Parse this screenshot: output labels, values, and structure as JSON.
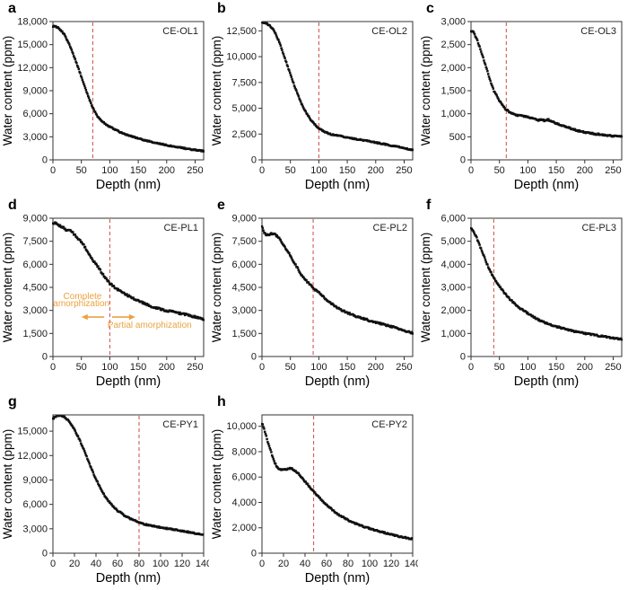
{
  "figure": {
    "background": "#ffffff",
    "point_color": "#111111",
    "frame_color": "#333333",
    "text_color": "#1a1a1a",
    "red_line_color": "#cf4a44",
    "annotation_color": "#eba23f"
  },
  "chart_data": [
    {
      "type": "scatter",
      "letter": "a",
      "title": "CE-OL1",
      "xlabel": "Depth (nm)",
      "ylabel": "Water content (ppm)",
      "xlim": [
        0,
        265
      ],
      "ylim": [
        0,
        18000
      ],
      "xticks": [
        0,
        50,
        100,
        150,
        200,
        250
      ],
      "yticks": [
        0,
        3000,
        6000,
        9000,
        12000,
        15000,
        18000
      ],
      "red_line_x": 70,
      "noise": 70,
      "curve": {
        "x": [
          0,
          5,
          10,
          15,
          20,
          25,
          30,
          35,
          40,
          45,
          50,
          55,
          60,
          65,
          70,
          75,
          80,
          90,
          100,
          110,
          120,
          130,
          140,
          150,
          160,
          170,
          180,
          190,
          200,
          210,
          220,
          230,
          240,
          250,
          260,
          265
        ],
        "y": [
          17400,
          17350,
          17150,
          16800,
          16300,
          15600,
          14800,
          13900,
          12900,
          11850,
          10800,
          9750,
          8700,
          7700,
          6800,
          6100,
          5500,
          4800,
          4300,
          3900,
          3550,
          3250,
          3000,
          2780,
          2580,
          2400,
          2230,
          2070,
          1920,
          1780,
          1650,
          1520,
          1400,
          1290,
          1190,
          1150
        ]
      }
    },
    {
      "type": "scatter",
      "letter": "b",
      "title": "CE-OL2",
      "xlabel": "Depth (nm)",
      "ylabel": "Water content (ppm)",
      "xlim": [
        0,
        265
      ],
      "ylim": [
        0,
        13400
      ],
      "xticks": [
        0,
        50,
        100,
        150,
        200,
        250
      ],
      "yticks": [
        0,
        2500,
        5000,
        7500,
        10000,
        12500
      ],
      "red_line_x": 100,
      "noise": 55,
      "curve": {
        "x": [
          0,
          5,
          10,
          15,
          20,
          25,
          30,
          35,
          40,
          45,
          50,
          55,
          60,
          65,
          70,
          75,
          80,
          85,
          90,
          95,
          100,
          110,
          120,
          130,
          140,
          150,
          160,
          170,
          180,
          190,
          200,
          210,
          220,
          230,
          240,
          250,
          260,
          265
        ],
        "y": [
          13300,
          13280,
          13150,
          12950,
          12600,
          12100,
          11450,
          10700,
          9900,
          9100,
          8300,
          7500,
          6750,
          6050,
          5400,
          4850,
          4350,
          3950,
          3600,
          3300,
          3050,
          2700,
          2500,
          2380,
          2280,
          2180,
          2080,
          1980,
          1880,
          1780,
          1680,
          1580,
          1470,
          1360,
          1250,
          1130,
          1000,
          950
        ]
      }
    },
    {
      "type": "scatter",
      "letter": "c",
      "title": "CE-OL3",
      "xlabel": "Depth (nm)",
      "ylabel": "Water content (ppm)",
      "xlim": [
        0,
        265
      ],
      "ylim": [
        0,
        3000
      ],
      "xticks": [
        0,
        50,
        100,
        150,
        200,
        250
      ],
      "yticks": [
        0,
        500,
        1000,
        1500,
        2000,
        2500,
        3000
      ],
      "red_line_x": 62,
      "noise": 16,
      "curve": {
        "x": [
          0,
          4,
          8,
          12,
          16,
          20,
          24,
          28,
          32,
          36,
          40,
          45,
          50,
          55,
          60,
          65,
          70,
          75,
          80,
          90,
          100,
          110,
          118,
          124,
          130,
          136,
          142,
          150,
          158,
          166,
          174,
          182,
          190,
          200,
          210,
          220,
          230,
          240,
          250,
          260,
          265
        ],
        "y": [
          2800,
          2770,
          2680,
          2560,
          2420,
          2270,
          2110,
          1950,
          1790,
          1640,
          1500,
          1390,
          1290,
          1190,
          1110,
          1060,
          1020,
          990,
          970,
          950,
          930,
          890,
          855,
          880,
          845,
          870,
          840,
          790,
          750,
          720,
          690,
          655,
          625,
          600,
          580,
          560,
          545,
          530,
          515,
          505,
          500
        ]
      }
    },
    {
      "type": "scatter",
      "letter": "d",
      "title": "CE-PL1",
      "xlabel": "Depth (nm)",
      "ylabel": "Water content (ppm)",
      "xlim": [
        0,
        265
      ],
      "ylim": [
        0,
        9000
      ],
      "xticks": [
        0,
        50,
        100,
        150,
        200,
        250
      ],
      "yticks": [
        0,
        1500,
        3000,
        4500,
        6000,
        7500,
        9000
      ],
      "red_line_x": 100,
      "noise": 60,
      "annotations": [
        {
          "kind": "text",
          "text": "Complete",
          "x": 52,
          "y": 3750
        },
        {
          "kind": "text",
          "text": "amorphization",
          "x": 50,
          "y": 3280
        },
        {
          "kind": "arrow",
          "x1": 90,
          "x2": 58,
          "y": 2570
        },
        {
          "kind": "arrow",
          "x1": 104,
          "x2": 137,
          "y": 2570
        },
        {
          "kind": "text",
          "text": "Partial amorphization",
          "x": 170,
          "y": 1880
        }
      ],
      "curve": {
        "x": [
          0,
          5,
          10,
          15,
          20,
          25,
          30,
          35,
          40,
          45,
          50,
          55,
          60,
          65,
          70,
          75,
          80,
          85,
          90,
          95,
          100,
          110,
          120,
          130,
          140,
          150,
          160,
          170,
          180,
          190,
          200,
          210,
          220,
          230,
          240,
          250,
          260,
          265
        ],
        "y": [
          8650,
          8700,
          8550,
          8450,
          8350,
          8200,
          8250,
          8050,
          7850,
          7650,
          7450,
          7200,
          6900,
          6600,
          6300,
          6050,
          5800,
          5500,
          5250,
          4980,
          4750,
          4450,
          4200,
          4000,
          3800,
          3620,
          3470,
          3320,
          3180,
          3080,
          2980,
          2920,
          2830,
          2760,
          2670,
          2570,
          2470,
          2430
        ]
      }
    },
    {
      "type": "scatter",
      "letter": "e",
      "title": "CE-PL2",
      "xlabel": "Depth (nm)",
      "ylabel": "Water content (ppm)",
      "xlim": [
        0,
        265
      ],
      "ylim": [
        0,
        9000
      ],
      "xticks": [
        0,
        50,
        100,
        150,
        200,
        250
      ],
      "yticks": [
        0,
        1500,
        3000,
        4500,
        6000,
        7500,
        9000
      ],
      "red_line_x": 90,
      "noise": 55,
      "curve": {
        "x": [
          0,
          3,
          6,
          10,
          14,
          18,
          22,
          26,
          30,
          35,
          40,
          45,
          50,
          55,
          60,
          65,
          70,
          75,
          80,
          85,
          90,
          95,
          100,
          110,
          120,
          130,
          140,
          150,
          160,
          170,
          180,
          190,
          200,
          210,
          220,
          230,
          240,
          250,
          260,
          265
        ],
        "y": [
          8500,
          8150,
          7950,
          7900,
          7960,
          8000,
          7960,
          7850,
          7700,
          7450,
          7150,
          6850,
          6550,
          6200,
          5900,
          5600,
          5300,
          5050,
          4850,
          4650,
          4450,
          4300,
          4150,
          3800,
          3500,
          3250,
          3000,
          2850,
          2700,
          2550,
          2450,
          2330,
          2230,
          2120,
          2020,
          1920,
          1800,
          1700,
          1580,
          1530
        ]
      }
    },
    {
      "type": "scatter",
      "letter": "f",
      "title": "CE-PL3",
      "xlabel": "Depth (nm)",
      "ylabel": "Water content (ppm)",
      "xlim": [
        0,
        265
      ],
      "ylim": [
        0,
        6000
      ],
      "xticks": [
        0,
        50,
        100,
        150,
        200,
        250
      ],
      "yticks": [
        0,
        1000,
        2000,
        3000,
        4000,
        5000,
        6000
      ],
      "red_line_x": 40,
      "noise": 30,
      "curve": {
        "x": [
          0,
          3,
          6,
          10,
          14,
          18,
          22,
          26,
          30,
          34,
          38,
          42,
          46,
          50,
          55,
          60,
          65,
          70,
          75,
          80,
          85,
          90,
          95,
          100,
          110,
          120,
          130,
          140,
          150,
          160,
          170,
          180,
          190,
          200,
          210,
          220,
          230,
          240,
          250,
          260,
          265
        ],
        "y": [
          5550,
          5480,
          5350,
          5150,
          4900,
          4650,
          4400,
          4150,
          3900,
          3700,
          3500,
          3350,
          3200,
          3050,
          2880,
          2720,
          2580,
          2450,
          2330,
          2220,
          2120,
          2030,
          1950,
          1870,
          1720,
          1580,
          1470,
          1380,
          1300,
          1230,
          1160,
          1100,
          1050,
          1000,
          960,
          920,
          880,
          840,
          800,
          760,
          750
        ]
      }
    },
    {
      "type": "scatter",
      "letter": "g",
      "title": "CE-PY1",
      "xlabel": "Depth (nm)",
      "ylabel": "Water content (ppm)",
      "xlim": [
        0,
        140
      ],
      "ylim": [
        0,
        17000
      ],
      "xticks": [
        0,
        20,
        40,
        60,
        80,
        100,
        120,
        140
      ],
      "yticks": [
        0,
        3000,
        6000,
        9000,
        12000,
        15000
      ],
      "red_line_x": 80,
      "noise": 75,
      "curve": {
        "x": [
          0,
          2,
          4,
          6,
          8,
          10,
          12,
          15,
          18,
          21,
          24,
          27,
          30,
          33,
          36,
          40,
          44,
          48,
          52,
          56,
          60,
          65,
          70,
          75,
          80,
          85,
          90,
          95,
          100,
          105,
          110,
          115,
          120,
          125,
          130,
          135,
          140
        ],
        "y": [
          16500,
          16750,
          16900,
          16950,
          16900,
          16800,
          16600,
          16200,
          15650,
          14950,
          14150,
          13250,
          12300,
          11300,
          10300,
          9100,
          8050,
          7100,
          6350,
          5750,
          5250,
          4750,
          4350,
          4050,
          3780,
          3560,
          3400,
          3280,
          3170,
          3050,
          2950,
          2850,
          2730,
          2620,
          2500,
          2380,
          2250
        ]
      }
    },
    {
      "type": "scatter",
      "letter": "h",
      "title": "CE-PY2",
      "xlabel": "Depth (nm)",
      "ylabel": "Water content (ppm)",
      "xlim": [
        0,
        140
      ],
      "ylim": [
        0,
        10900
      ],
      "xticks": [
        0,
        20,
        40,
        60,
        80,
        100,
        120,
        140
      ],
      "yticks": [
        0,
        2000,
        4000,
        6000,
        8000,
        10000
      ],
      "red_line_x": 48,
      "noise": 50,
      "curve": {
        "x": [
          0,
          1,
          2,
          3,
          4,
          5,
          6,
          8,
          10,
          12,
          14,
          16,
          18,
          20,
          22,
          24,
          26,
          28,
          30,
          32,
          34,
          36,
          40,
          44,
          48,
          52,
          56,
          60,
          65,
          70,
          75,
          80,
          85,
          90,
          95,
          100,
          105,
          110,
          115,
          120,
          125,
          130,
          135,
          140
        ],
        "y": [
          10200,
          10050,
          9800,
          9500,
          9200,
          8900,
          8600,
          8100,
          7550,
          7100,
          6800,
          6650,
          6580,
          6560,
          6600,
          6660,
          6700,
          6660,
          6560,
          6420,
          6250,
          6060,
          5650,
          5250,
          4870,
          4500,
          4150,
          3800,
          3450,
          3100,
          2850,
          2600,
          2400,
          2220,
          2080,
          1950,
          1820,
          1700,
          1580,
          1470,
          1370,
          1280,
          1190,
          1120
        ]
      }
    }
  ]
}
